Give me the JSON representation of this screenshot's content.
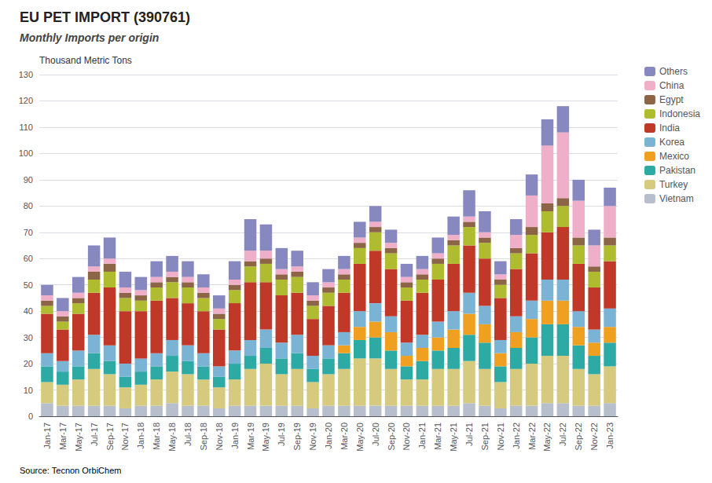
{
  "chart_data": {
    "type": "bar",
    "stacked": true,
    "title": "EU PET IMPORT (390761)",
    "subtitle": "Monthly Imports per origin",
    "ylabel": "Thousand Metric Tons",
    "source": "Source: Tecnon OrbiChem",
    "ylim": [
      0,
      130
    ],
    "yticks": [
      0,
      10,
      20,
      30,
      40,
      50,
      60,
      70,
      80,
      90,
      100,
      110,
      120,
      130
    ],
    "grid": true,
    "legend": "upper right",
    "categories": [
      "Jan-17",
      "Mar-17",
      "May-17",
      "Jul-17",
      "Sep-17",
      "Nov-17",
      "Jan-18",
      "Mar-18",
      "May-18",
      "Jul-18",
      "Sep-18",
      "Nov-18",
      "Jan-19",
      "Mar-19",
      "May-19",
      "Jul-19",
      "Sep-19",
      "Nov-19",
      "Jan-20",
      "Mar-20",
      "May-20",
      "Jul-20",
      "Sep-20",
      "Nov-20",
      "Jan-21",
      "Mar-21",
      "May-21",
      "Jul-21",
      "Sep-21",
      "Nov-21",
      "Jan-22",
      "Mar-22",
      "May-22",
      "Jul-22",
      "Sep-22",
      "Nov-22",
      "Jan-23"
    ],
    "series": [
      {
        "name": "Vietnam",
        "color": "#b8bfcc",
        "values": [
          5,
          4,
          4,
          4,
          4,
          3,
          4,
          4,
          5,
          4,
          4,
          3,
          4,
          4,
          4,
          4,
          4,
          3,
          4,
          4,
          4,
          4,
          4,
          4,
          4,
          4,
          4,
          5,
          4,
          3,
          4,
          4,
          5,
          5,
          4,
          4,
          5
        ]
      },
      {
        "name": "Turkey",
        "color": "#d6ca7e",
        "values": [
          8,
          8,
          10,
          14,
          12,
          8,
          8,
          10,
          12,
          12,
          10,
          8,
          10,
          14,
          16,
          12,
          14,
          10,
          12,
          14,
          18,
          18,
          14,
          10,
          10,
          14,
          14,
          16,
          14,
          10,
          14,
          16,
          18,
          18,
          14,
          12,
          14
        ]
      },
      {
        "name": "Pakistan",
        "color": "#2eaaa5",
        "values": [
          6,
          5,
          5,
          6,
          5,
          4,
          5,
          5,
          6,
          5,
          5,
          4,
          6,
          5,
          6,
          6,
          6,
          5,
          6,
          6,
          7,
          8,
          7,
          5,
          7,
          7,
          8,
          10,
          10,
          6,
          8,
          10,
          12,
          12,
          9,
          7,
          9
        ]
      },
      {
        "name": "Mexico",
        "color": "#f0a020",
        "values": [
          0,
          0,
          0,
          0,
          0,
          0,
          0,
          0,
          0,
          0,
          0,
          0,
          0,
          0,
          0,
          0,
          0,
          0,
          0,
          3,
          5,
          6,
          7,
          4,
          5,
          5,
          7,
          8,
          7,
          5,
          6,
          7,
          9,
          9,
          7,
          5,
          6
        ]
      },
      {
        "name": "Korea",
        "color": "#7ab3d4",
        "values": [
          5,
          4,
          6,
          7,
          6,
          5,
          5,
          5,
          6,
          6,
          5,
          4,
          5,
          6,
          7,
          6,
          7,
          5,
          5,
          5,
          6,
          7,
          6,
          5,
          5,
          6,
          7,
          8,
          7,
          5,
          6,
          7,
          8,
          8,
          6,
          5,
          7
        ]
      },
      {
        "name": "India",
        "color": "#c03828",
        "values": [
          15,
          12,
          14,
          16,
          22,
          20,
          18,
          20,
          16,
          16,
          16,
          14,
          18,
          22,
          18,
          18,
          16,
          14,
          15,
          15,
          18,
          20,
          18,
          16,
          16,
          16,
          18,
          18,
          18,
          16,
          18,
          18,
          18,
          20,
          18,
          16,
          18
        ]
      },
      {
        "name": "Indonesia",
        "color": "#b0bc30",
        "values": [
          3,
          3,
          4,
          5,
          6,
          5,
          4,
          5,
          6,
          6,
          5,
          4,
          5,
          6,
          7,
          6,
          6,
          5,
          5,
          5,
          6,
          7,
          6,
          5,
          5,
          6,
          7,
          7,
          6,
          5,
          6,
          7,
          8,
          8,
          7,
          6,
          6
        ]
      },
      {
        "name": "Egypt",
        "color": "#8b6545",
        "values": [
          2,
          2,
          2,
          3,
          3,
          2,
          2,
          2,
          2,
          2,
          2,
          2,
          2,
          2,
          2,
          2,
          2,
          2,
          2,
          2,
          2,
          2,
          2,
          2,
          2,
          2,
          2,
          2,
          2,
          2,
          2,
          3,
          3,
          3,
          3,
          2,
          3
        ]
      },
      {
        "name": "China",
        "color": "#f0afc8",
        "values": [
          2,
          2,
          2,
          2,
          2,
          2,
          2,
          2,
          2,
          2,
          2,
          2,
          2,
          4,
          3,
          2,
          2,
          2,
          2,
          2,
          2,
          2,
          2,
          2,
          2,
          2,
          2,
          2,
          2,
          2,
          5,
          12,
          22,
          25,
          14,
          8,
          12
        ]
      },
      {
        "name": "Others",
        "color": "#8888c0",
        "values": [
          4,
          5,
          6,
          8,
          8,
          6,
          5,
          6,
          6,
          6,
          5,
          5,
          7,
          12,
          10,
          8,
          6,
          5,
          5,
          5,
          6,
          6,
          5,
          5,
          5,
          6,
          7,
          10,
          8,
          5,
          6,
          8,
          10,
          10,
          8,
          6,
          7
        ]
      }
    ]
  }
}
